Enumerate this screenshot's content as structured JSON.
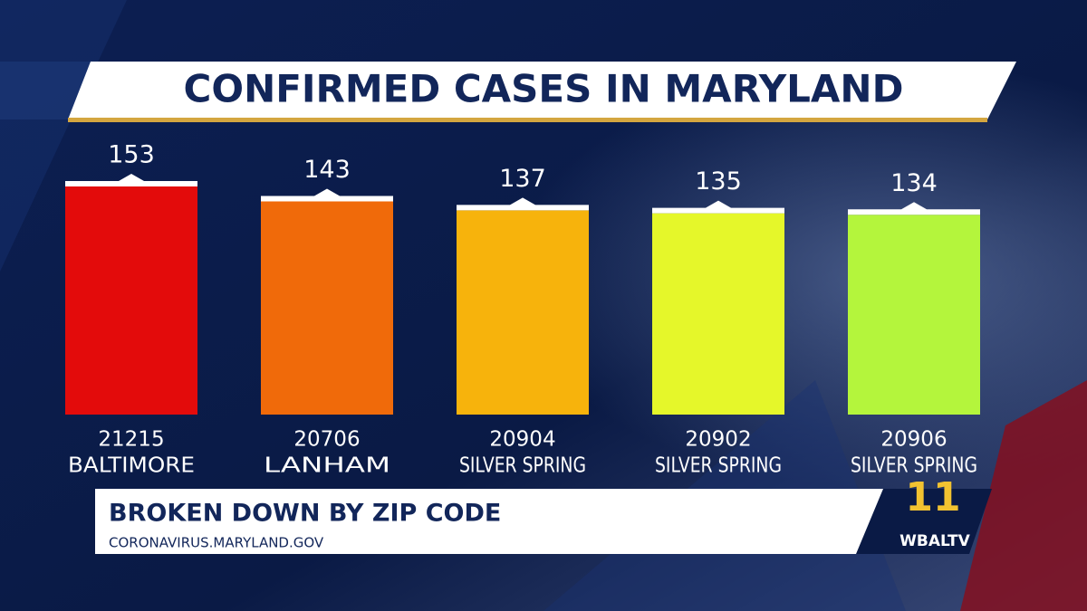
{
  "chart_data": {
    "type": "bar",
    "title": "CONFIRMED CASES IN MARYLAND",
    "categories": [
      [
        "21215",
        "BALTIMORE"
      ],
      [
        "20706",
        "LANHAM"
      ],
      [
        "20904",
        "SILVER SPRING"
      ],
      [
        "20902",
        "SILVER SPRING"
      ],
      [
        "20906",
        "SILVER SPRING"
      ]
    ],
    "values": [
      153,
      143,
      137,
      135,
      134
    ],
    "colors": [
      "#e30b0b",
      "#f06a0a",
      "#f7b30c",
      "#e5f72a",
      "#b4f53c"
    ],
    "subtitle": "BROKEN DOWN BY ZIP CODE",
    "source": "CORONAVIRUS.MARYLAND.GOV"
  },
  "logo": {
    "channel": "11",
    "name": "WBALTV"
  }
}
